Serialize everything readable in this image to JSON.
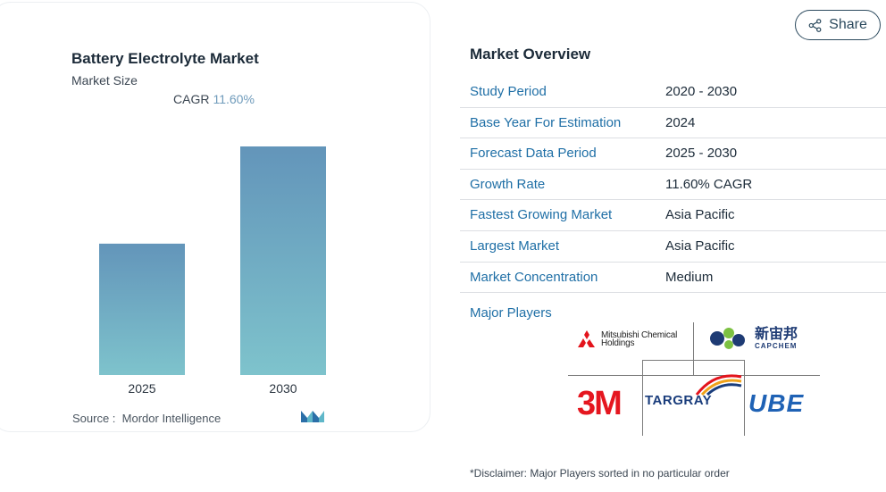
{
  "chart_data": {
    "type": "bar",
    "title": "Battery Electrolyte Market",
    "subtitle": "Market Size",
    "cagr_label": "CAGR",
    "cagr_value": "11.60%",
    "categories": [
      "2025",
      "2030"
    ],
    "values": [
      1.0,
      1.74
    ],
    "source_label": "Source :",
    "source_value": "Mordor Intelligence",
    "colors": {
      "bar_top": "#6395ba",
      "bar_bottom": "#7ec3cc"
    }
  },
  "share": {
    "label": "Share",
    "icon": "share-icon"
  },
  "overview": {
    "title": "Market Overview",
    "rows": [
      {
        "label": "Study Period",
        "value": "2020 - 2030"
      },
      {
        "label": "Base Year For Estimation",
        "value": "2024"
      },
      {
        "label": "Forecast Data Period",
        "value": "2025 - 2030"
      },
      {
        "label": "Growth Rate",
        "value": "11.60% CAGR"
      },
      {
        "label": "Fastest Growing Market",
        "value": "Asia Pacific"
      },
      {
        "label": "Largest Market",
        "value": "Asia Pacific"
      },
      {
        "label": "Market Concentration",
        "value": "Medium"
      }
    ]
  },
  "players": {
    "title": "Major Players",
    "mitsubishi": {
      "line1": "Mitsubishi Chemical",
      "line2": "Holdings"
    },
    "capchem": {
      "zh": "新宙邦",
      "en": "CAPCHEM"
    },
    "threem": "3M",
    "targray": "TARGRAY",
    "ube": "UBE"
  },
  "disclaimer": "*Disclaimer: Major Players sorted in no particular order"
}
